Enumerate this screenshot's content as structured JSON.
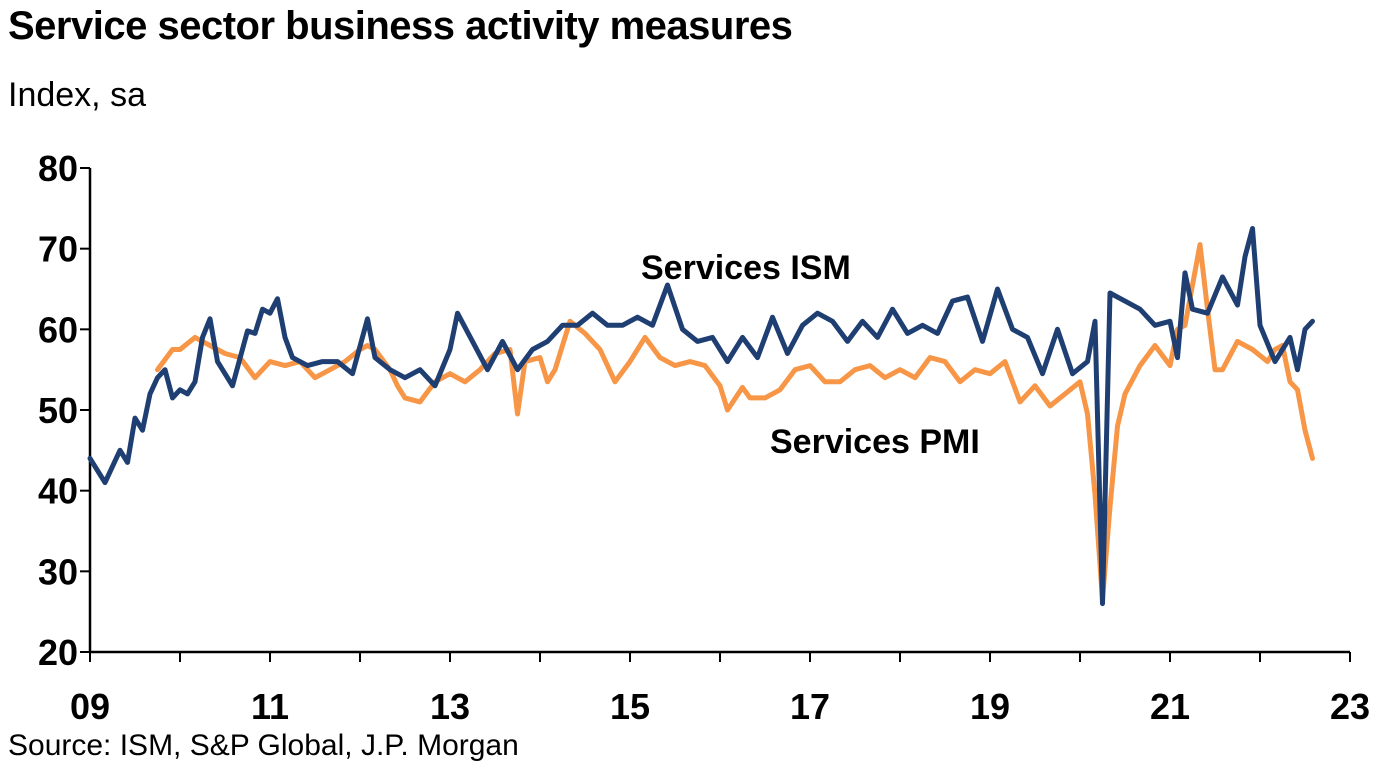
{
  "chart_data": {
    "type": "line",
    "title": "Service sector business activity measures",
    "subtitle": "Index, sa",
    "source": "Source: ISM, S&P Global, J.P. Morgan",
    "ylim": [
      20,
      80
    ],
    "y_ticks": [
      "80",
      "70",
      "60",
      "50",
      "40",
      "30",
      "20"
    ],
    "xlim": [
      "2009-01",
      "2023-01"
    ],
    "x_ticks": [
      {
        "label": "09",
        "value": "2009-01"
      },
      {
        "label": "11",
        "value": "2011-01"
      },
      {
        "label": "13",
        "value": "2013-01"
      },
      {
        "label": "15",
        "value": "2015-01"
      },
      {
        "label": "17",
        "value": "2017-01"
      },
      {
        "label": "19",
        "value": "2019-01"
      },
      {
        "label": "21",
        "value": "2021-01"
      },
      {
        "label": "23",
        "value": "2023-01"
      }
    ],
    "grid": false,
    "legend": "inline labels",
    "series": [
      {
        "name": "Services ISM",
        "color": "#1f3f73",
        "x": [
          "2009-01",
          "2009-03",
          "2009-05",
          "2009-06",
          "2009-07",
          "2009-08",
          "2009-09",
          "2009-10",
          "2009-11",
          "2009-12",
          "2010-01",
          "2010-02",
          "2010-03",
          "2010-04",
          "2010-05",
          "2010-06",
          "2010-08",
          "2010-10",
          "2010-11",
          "2010-12",
          "2011-01",
          "2011-02",
          "2011-03",
          "2011-04",
          "2011-06",
          "2011-08",
          "2011-10",
          "2011-12",
          "2012-02",
          "2012-03",
          "2012-05",
          "2012-07",
          "2012-09",
          "2012-11",
          "2013-01",
          "2013-02",
          "2013-04",
          "2013-06",
          "2013-08",
          "2013-10",
          "2013-12",
          "2014-02",
          "2014-04",
          "2014-06",
          "2014-08",
          "2014-10",
          "2014-12",
          "2015-02",
          "2015-04",
          "2015-06",
          "2015-08",
          "2015-10",
          "2015-12",
          "2016-02",
          "2016-04",
          "2016-06",
          "2016-08",
          "2016-10",
          "2016-12",
          "2017-02",
          "2017-04",
          "2017-06",
          "2017-08",
          "2017-10",
          "2017-12",
          "2018-02",
          "2018-04",
          "2018-06",
          "2018-08",
          "2018-10",
          "2018-12",
          "2019-02",
          "2019-04",
          "2019-06",
          "2019-08",
          "2019-10",
          "2019-12",
          "2020-02",
          "2020-03",
          "2020-04",
          "2020-05",
          "2020-06",
          "2020-07",
          "2020-09",
          "2020-11",
          "2021-01",
          "2021-02",
          "2021-03",
          "2021-04",
          "2021-06",
          "2021-08",
          "2021-10",
          "2021-11",
          "2021-12",
          "2022-01",
          "2022-03",
          "2022-05",
          "2022-06",
          "2022-07",
          "2022-08"
        ],
        "values": [
          44.0,
          41.0,
          45.0,
          43.5,
          49.0,
          47.5,
          52.0,
          54.0,
          55.0,
          51.5,
          52.5,
          52.0,
          53.5,
          59.0,
          61.3,
          56.0,
          53.0,
          59.8,
          59.5,
          62.5,
          62.0,
          63.8,
          59.0,
          56.5,
          55.5,
          56.0,
          56.0,
          54.5,
          61.3,
          56.5,
          55.0,
          54.0,
          55.0,
          53.0,
          57.5,
          62.0,
          58.5,
          55.0,
          58.5,
          55.0,
          57.5,
          58.5,
          60.5,
          60.5,
          62.0,
          60.5,
          60.5,
          61.5,
          60.5,
          65.5,
          60.0,
          58.5,
          59.0,
          56.0,
          59.0,
          56.5,
          61.5,
          57.0,
          60.5,
          62.0,
          61.0,
          58.5,
          61.0,
          59.0,
          62.5,
          59.5,
          60.5,
          59.5,
          63.5,
          64.0,
          58.5,
          65.0,
          60.0,
          59.0,
          54.5,
          60.0,
          54.5,
          56.0,
          61.0,
          26.0,
          64.5,
          64.0,
          63.5,
          62.5,
          60.5,
          61.0,
          56.5,
          67.0,
          62.5,
          62.0,
          66.5,
          63.0,
          69.0,
          72.5,
          60.5,
          56.0,
          59.0,
          55.0,
          60.0,
          61.0
        ]
      },
      {
        "name": "Services PMI",
        "color": "#f79646",
        "x": [
          "2009-10",
          "2009-12",
          "2010-01",
          "2010-03",
          "2010-05",
          "2010-07",
          "2010-09",
          "2010-11",
          "2011-01",
          "2011-03",
          "2011-05",
          "2011-07",
          "2011-09",
          "2011-11",
          "2012-01",
          "2012-02",
          "2012-03",
          "2012-05",
          "2012-06",
          "2012-07",
          "2012-09",
          "2012-11",
          "2013-01",
          "2013-03",
          "2013-05",
          "2013-07",
          "2013-09",
          "2013-10",
          "2013-11",
          "2014-01",
          "2014-02",
          "2014-03",
          "2014-05",
          "2014-07",
          "2014-09",
          "2014-11",
          "2015-01",
          "2015-03",
          "2015-05",
          "2015-07",
          "2015-09",
          "2015-11",
          "2016-01",
          "2016-02",
          "2016-04",
          "2016-05",
          "2016-07",
          "2016-09",
          "2016-11",
          "2017-01",
          "2017-03",
          "2017-05",
          "2017-07",
          "2017-09",
          "2017-11",
          "2018-01",
          "2018-03",
          "2018-05",
          "2018-07",
          "2018-09",
          "2018-11",
          "2019-01",
          "2019-03",
          "2019-05",
          "2019-07",
          "2019-09",
          "2019-11",
          "2020-01",
          "2020-02",
          "2020-03",
          "2020-04",
          "2020-05",
          "2020-06",
          "2020-07",
          "2020-09",
          "2020-11",
          "2021-01",
          "2021-02",
          "2021-03",
          "2021-05",
          "2021-06",
          "2021-07",
          "2021-08",
          "2021-10",
          "2021-12",
          "2022-02",
          "2022-03",
          "2022-04",
          "2022-05",
          "2022-06",
          "2022-07",
          "2022-08"
        ],
        "values": [
          55.0,
          57.5,
          57.5,
          59.0,
          58.0,
          57.0,
          56.5,
          54.0,
          56.0,
          55.5,
          56.0,
          54.0,
          55.0,
          56.0,
          57.5,
          58.0,
          57.5,
          55.0,
          53.0,
          51.5,
          51.0,
          53.5,
          54.5,
          53.5,
          55.0,
          57.0,
          57.5,
          49.5,
          56.0,
          56.5,
          53.5,
          55.0,
          61.0,
          59.5,
          57.5,
          53.5,
          56.0,
          59.0,
          56.5,
          55.5,
          56.0,
          55.5,
          53.0,
          50.0,
          52.8,
          51.5,
          51.5,
          52.5,
          55.0,
          55.5,
          53.5,
          53.5,
          55.0,
          55.5,
          54.0,
          55.0,
          54.0,
          56.5,
          56.0,
          53.5,
          55.0,
          54.5,
          56.0,
          51.0,
          53.0,
          50.5,
          52.0,
          53.5,
          49.5,
          39.5,
          26.5,
          38.0,
          48.0,
          52.0,
          55.5,
          58.0,
          55.5,
          60.0,
          60.5,
          70.5,
          62.5,
          55.0,
          55.0,
          58.5,
          57.5,
          56.0,
          57.5,
          58.0,
          53.5,
          52.5,
          47.5,
          44.0
        ]
      }
    ]
  },
  "header": {
    "title": "Service sector business activity measures",
    "subtitle": "Index, sa"
  },
  "labels": {
    "ism": "Services ISM",
    "pmi": "Services PMI"
  },
  "footer": {
    "source": "Source: ISM, S&P Global, J.P. Morgan"
  }
}
